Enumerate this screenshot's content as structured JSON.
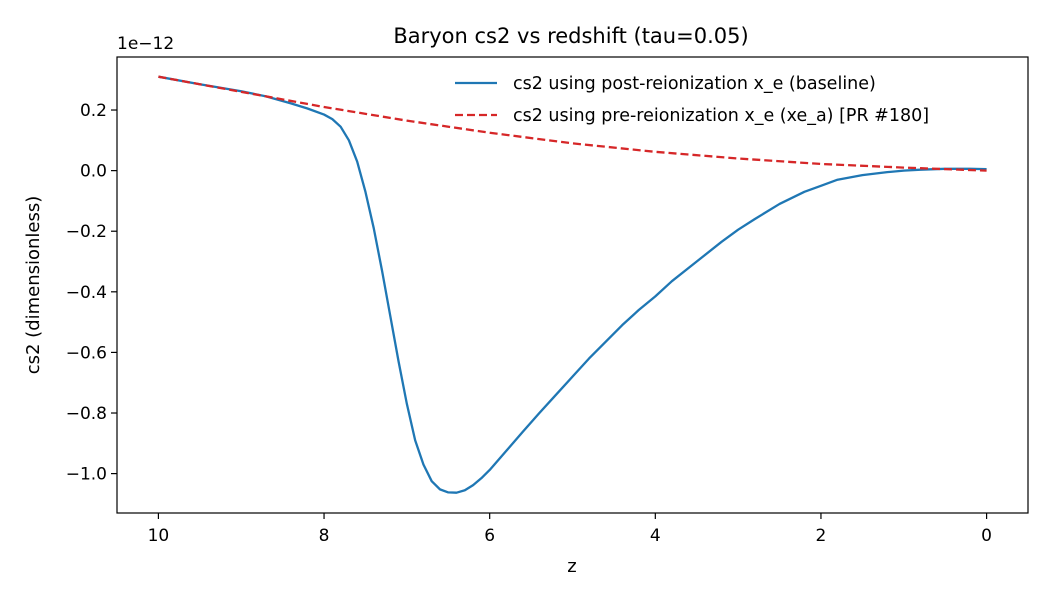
{
  "chart_data": {
    "type": "line",
    "title": "Baryon cs2 vs redshift (tau=0.05)",
    "xlabel": "z",
    "ylabel": "cs2 (dimensionless)",
    "y_offset_label": "1e−12",
    "xlim": [
      10.5,
      -0.5
    ],
    "ylim": [
      -1.13,
      0.375
    ],
    "x_ticks": [
      10,
      8,
      6,
      4,
      2,
      0
    ],
    "x_tick_labels": [
      "10",
      "8",
      "6",
      "4",
      "2",
      "0"
    ],
    "y_ticks": [
      -1.0,
      -0.8,
      -0.6,
      -0.4,
      -0.2,
      0.0,
      0.2
    ],
    "y_tick_labels": [
      "−1.0",
      "−0.8",
      "−0.6",
      "−0.4",
      "−0.2",
      "0.0",
      "0.2"
    ],
    "grid": false,
    "legend_position": "top-right",
    "series": [
      {
        "name": "cs2 using post-reionization x_e (baseline)",
        "color": "#1f77b4",
        "style": "solid",
        "x": [
          10,
          9.5,
          9.0,
          8.7,
          8.4,
          8.2,
          8.0,
          7.9,
          7.8,
          7.7,
          7.6,
          7.5,
          7.4,
          7.3,
          7.2,
          7.1,
          7.0,
          6.9,
          6.8,
          6.7,
          6.6,
          6.5,
          6.4,
          6.3,
          6.2,
          6.1,
          6.0,
          5.8,
          5.6,
          5.4,
          5.2,
          5.0,
          4.8,
          4.6,
          4.4,
          4.2,
          4.0,
          3.8,
          3.5,
          3.2,
          3.0,
          2.8,
          2.5,
          2.2,
          2.0,
          1.8,
          1.5,
          1.2,
          1.0,
          0.8,
          0.5,
          0.2,
          0.0
        ],
        "y": [
          0.31,
          0.285,
          0.262,
          0.245,
          0.222,
          0.205,
          0.185,
          0.17,
          0.145,
          0.1,
          0.03,
          -0.07,
          -0.19,
          -0.33,
          -0.48,
          -0.63,
          -0.77,
          -0.89,
          -0.97,
          -1.025,
          -1.052,
          -1.062,
          -1.063,
          -1.055,
          -1.038,
          -1.015,
          -0.988,
          -0.925,
          -0.862,
          -0.8,
          -0.74,
          -0.68,
          -0.62,
          -0.565,
          -0.51,
          -0.46,
          -0.415,
          -0.365,
          -0.3,
          -0.235,
          -0.195,
          -0.16,
          -0.11,
          -0.07,
          -0.05,
          -0.03,
          -0.015,
          -0.005,
          0.0,
          0.003,
          0.006,
          0.006,
          0.005
        ]
      },
      {
        "name": "cs2 using pre-reionization x_e (xe_a) [PR #180]",
        "color": "#d62728",
        "style": "dashed",
        "x": [
          10,
          9,
          8,
          7,
          6,
          5,
          4,
          3,
          2,
          1,
          0
        ],
        "y": [
          0.31,
          0.26,
          0.21,
          0.165,
          0.125,
          0.09,
          0.062,
          0.04,
          0.022,
          0.01,
          0.0
        ]
      }
    ]
  }
}
